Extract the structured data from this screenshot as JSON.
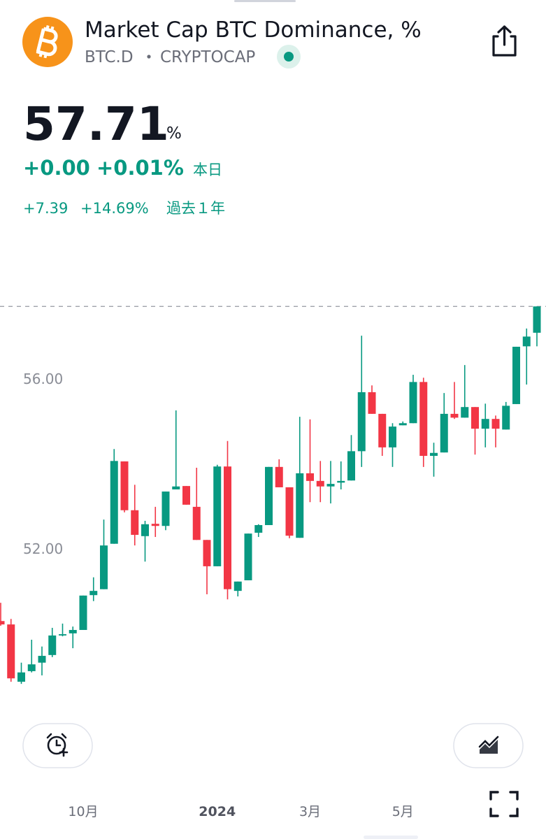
{
  "header": {
    "title": "Market Cap BTC Dominance, %",
    "symbol": "BTC.D",
    "exchange": "CRYPTOCAP",
    "price": "57.71",
    "unit": "%",
    "change": "+0.00",
    "change_pct": "+0.01%",
    "change_period": "本日",
    "year_change": "+7.39",
    "year_change_pct": "+14.69%",
    "year_period": "過去１年"
  },
  "chart_data": {
    "type": "candlestick",
    "categories": [
      null,
      null,
      null,
      null,
      null,
      null,
      null,
      null,
      "10月",
      null,
      null,
      null,
      null,
      null,
      null,
      null,
      null,
      null,
      null,
      null,
      null,
      "2024",
      null,
      null,
      null,
      null,
      null,
      null,
      null,
      null,
      "3月",
      null,
      null,
      null,
      null,
      null,
      null,
      null,
      null,
      "5月",
      null,
      null,
      null,
      null,
      null,
      null,
      null,
      null,
      null,
      null,
      null,
      null,
      null
    ],
    "open": [
      50.3,
      50.22,
      48.87,
      49.12,
      49.32,
      49.5,
      49.96,
      50.01,
      50.09,
      50.91,
      51.05,
      52.12,
      54.06,
      52.91,
      52.3,
      52.59,
      52.54,
      53.4,
      53.48,
      52.99,
      52.21,
      51.59,
      53.94,
      51.01,
      51.26,
      52.38,
      52.56,
      53.93,
      53.45,
      52.26,
      53.78,
      53.6,
      53.47,
      53.56,
      53.61,
      54.3,
      55.69,
      55.18,
      54.39,
      54.91,
      54.96,
      55.93,
      54.19,
      54.27,
      55.18,
      55.09,
      55.34,
      54.83,
      55.06,
      54.81,
      55.41,
      56.77,
      57.09
    ],
    "high": [
      50.73,
      50.35,
      49.32,
      49.86,
      49.7,
      50.14,
      50.24,
      50.17,
      50.9,
      51.33,
      52.69,
      54.35,
      54.06,
      53.51,
      52.66,
      52.99,
      53.35,
      55.26,
      53.48,
      53.91,
      52.21,
      53.98,
      54.54,
      51.23,
      52.36,
      52.58,
      53.93,
      54.11,
      53.45,
      55.11,
      55.05,
      54.07,
      54.07,
      54.06,
      54.68,
      57.02,
      55.85,
      55.18,
      54.96,
      55.0,
      56.1,
      56.03,
      54.5,
      55.67,
      55.93,
      56.33,
      55.34,
      55.42,
      55.14,
      55.46,
      56.76,
      57.19,
      57.71
    ],
    "low": [
      50.19,
      48.87,
      48.82,
      49.09,
      49.02,
      49.45,
      49.94,
      49.66,
      50.09,
      50.77,
      51.05,
      52.12,
      52.86,
      52.08,
      51.7,
      52.28,
      52.44,
      53.4,
      53.04,
      52.21,
      50.93,
      51.59,
      50.81,
      50.88,
      51.26,
      52.28,
      52.56,
      53.45,
      52.25,
      52.26,
      53.1,
      53.1,
      53.07,
      53.4,
      53.61,
      53.93,
      55.18,
      54.19,
      53.93,
      54.91,
      54.96,
      53.93,
      53.7,
      54.27,
      55.06,
      55.09,
      54.22,
      54.39,
      54.39,
      54.81,
      55.41,
      55.87,
      56.77
    ],
    "close": [
      50.22,
      48.95,
      49.09,
      49.28,
      49.48,
      49.96,
      49.99,
      50.09,
      50.9,
      51.01,
      52.08,
      54.07,
      52.91,
      52.33,
      52.58,
      52.54,
      53.35,
      53.47,
      53.04,
      52.21,
      51.59,
      53.94,
      51.05,
      51.23,
      52.36,
      52.56,
      53.93,
      53.45,
      52.31,
      53.78,
      53.6,
      53.47,
      53.53,
      53.6,
      54.3,
      55.69,
      55.18,
      54.39,
      54.88,
      54.96,
      55.93,
      54.19,
      54.26,
      55.18,
      55.09,
      55.34,
      54.83,
      55.06,
      54.83,
      55.37,
      56.76,
      57.0,
      57.71
    ],
    "up_color": "#089981",
    "down_color": "#f23645",
    "ylim": [
      48.46,
      58.34
    ],
    "yticks": [
      {
        "value": 52,
        "label": "52.00"
      },
      {
        "value": 56,
        "label": "56.00"
      }
    ]
  }
}
